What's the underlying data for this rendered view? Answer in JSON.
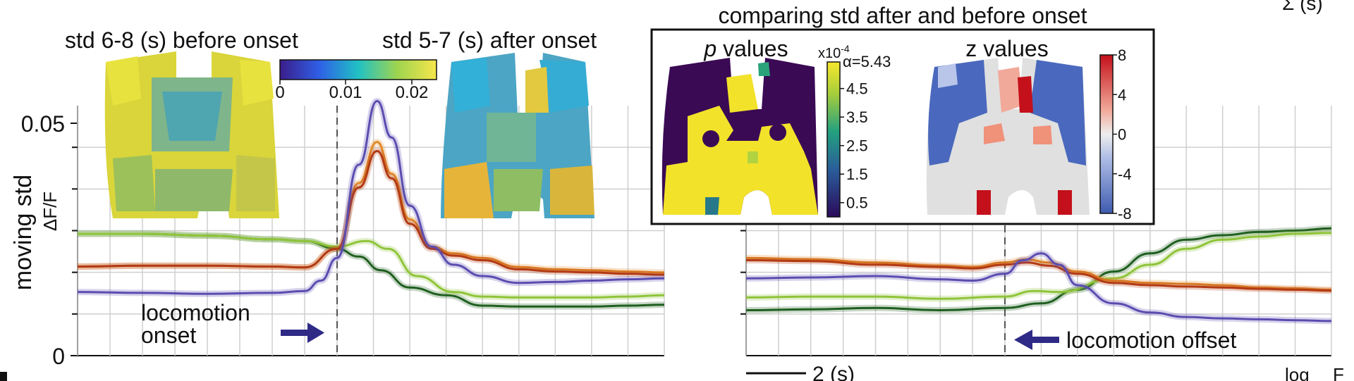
{
  "chart_data": {
    "type": "line",
    "x_unit": "s",
    "y_ticks": [
      "0",
      "0.05"
    ],
    "ylim": [
      0,
      0.055
    ],
    "ylabel": "moving std",
    "ylabel2": "ΔF/F",
    "scalebar_label": "2 (s)",
    "top_right_fragment": "Σ (s)",
    "bottom_right_fragment": "log",
    "bottom_right_fragment2": "F",
    "panels": [
      {
        "id": "onset",
        "xlim": [
          -8,
          9
        ],
        "event_x": 0,
        "annotation": [
          "locomotion",
          "onset"
        ],
        "series": [
          {
            "color": "#1f5f1f",
            "x": [
              -8,
              -6,
              -4,
              -2,
              -1,
              0,
              0.6,
              1.2,
              2.0,
              3.0,
              4,
              5,
              6,
              7,
              8,
              9
            ],
            "y": [
              0.0268,
              0.0268,
              0.0264,
              0.0256,
              0.0252,
              0.0235,
              0.0218,
              0.0188,
              0.015,
              0.0133,
              0.011,
              0.0108,
              0.0108,
              0.0108,
              0.011,
              0.0112
            ]
          },
          {
            "color": "#8fc43a",
            "x": [
              -8,
              -6,
              -4,
              -2,
              -1,
              0,
              0.8,
              1.4,
              2.2,
              3.2,
              4,
              5,
              6,
              7,
              8,
              9
            ],
            "y": [
              0.0268,
              0.0268,
              0.0264,
              0.0256,
              0.0252,
              0.024,
              0.0252,
              0.0235,
              0.0175,
              0.014,
              0.013,
              0.0128,
              0.0128,
              0.0128,
              0.013,
              0.0133
            ]
          },
          {
            "color": "#e28a2a",
            "x": [
              -8,
              -6,
              -4,
              -2,
              -1,
              0,
              0.6,
              1.1,
              1.5,
              2.0,
              2.6,
              3.2,
              4,
              5,
              6,
              7,
              8,
              9
            ],
            "y": [
              0.0196,
              0.0198,
              0.0198,
              0.0196,
              0.0194,
              0.0235,
              0.038,
              0.047,
              0.04,
              0.03,
              0.024,
              0.0225,
              0.0215,
              0.0195,
              0.019,
              0.0188,
              0.0185,
              0.0183
            ]
          },
          {
            "color": "#b23a14",
            "x": [
              -8,
              -6,
              -4,
              -2,
              -1,
              0,
              0.6,
              1.1,
              1.5,
              2.0,
              2.6,
              3.2,
              4,
              5,
              6,
              7,
              8,
              9
            ],
            "y": [
              0.0196,
              0.0198,
              0.0198,
              0.0196,
              0.0194,
              0.0235,
              0.037,
              0.045,
              0.039,
              0.029,
              0.0235,
              0.022,
              0.021,
              0.019,
              0.0185,
              0.0183,
              0.018,
              0.0178
            ]
          },
          {
            "color": "#5a4db0",
            "x": [
              -8,
              -6,
              -4,
              -2,
              -1,
              -0.5,
              0,
              0.6,
              1.1,
              1.5,
              2.0,
              2.6,
              3.2,
              4,
              5,
              6,
              7,
              8,
              9
            ],
            "y": [
              0.014,
              0.0138,
              0.0136,
              0.0138,
              0.0142,
              0.0165,
              0.0215,
              0.042,
              0.056,
              0.048,
              0.033,
              0.024,
              0.02,
              0.0175,
              0.016,
              0.0162,
              0.0165,
              0.0168,
              0.017
            ]
          }
        ]
      },
      {
        "id": "offset",
        "xlim": [
          -8,
          9
        ],
        "event_x": 0,
        "annotation": [
          "locomotion offset"
        ],
        "series": [
          {
            "color": "#1f5f1f",
            "x": [
              -8,
              -6,
              -4,
              -2,
              0,
              1,
              2,
              3,
              4,
              5,
              6,
              7,
              8,
              9
            ],
            "y": [
              0.01,
              0.0102,
              0.0105,
              0.01,
              0.0105,
              0.0115,
              0.0145,
              0.0185,
              0.0225,
              0.0255,
              0.0265,
              0.0272,
              0.0275,
              0.028
            ]
          },
          {
            "color": "#8fc43a",
            "x": [
              -8,
              -6,
              -4,
              -2,
              0,
              0.8,
              1.5,
              3,
              4,
              5,
              6,
              7,
              8,
              9
            ],
            "y": [
              0.0128,
              0.013,
              0.013,
              0.0125,
              0.013,
              0.0142,
              0.014,
              0.017,
              0.02,
              0.0235,
              0.0255,
              0.0262,
              0.0268,
              0.027
            ]
          },
          {
            "color": "#e28a2a",
            "x": [
              -8,
              -6,
              -4,
              -2,
              -1,
              0,
              0.6,
              1.2,
              2,
              3,
              4,
              5,
              6,
              7,
              8,
              9
            ],
            "y": [
              0.0215,
              0.0212,
              0.0205,
              0.0198,
              0.0195,
              0.0205,
              0.0212,
              0.0205,
              0.0185,
              0.0165,
              0.016,
              0.0158,
              0.0155,
              0.015,
              0.0148,
              0.0145
            ]
          },
          {
            "color": "#b23a14",
            "x": [
              -8,
              -6,
              -4,
              -2,
              -1,
              0,
              0.6,
              1.2,
              2,
              3,
              4,
              5,
              6,
              7,
              8,
              9
            ],
            "y": [
              0.021,
              0.0208,
              0.02,
              0.0195,
              0.0192,
              0.02,
              0.0205,
              0.0198,
              0.018,
              0.016,
              0.0155,
              0.0152,
              0.015,
              0.0147,
              0.0145,
              0.0143
            ]
          },
          {
            "color": "#5a4db0",
            "x": [
              -8,
              -6,
              -4,
              -2,
              -1,
              0,
              0.5,
              1.0,
              1.5,
              2,
              3,
              4,
              5,
              6,
              7,
              8,
              9
            ],
            "y": [
              0.017,
              0.0172,
              0.0175,
              0.0168,
              0.0165,
              0.018,
              0.021,
              0.0225,
              0.02,
              0.0155,
              0.0115,
              0.0095,
              0.0085,
              0.0082,
              0.008,
              0.0078,
              0.0076
            ]
          }
        ]
      }
    ],
    "maps": {
      "before_title": "std 6-8 (s) before onset",
      "after_title": "std 5-7 (s) after onset",
      "std_colorbar_ticks": [
        "0",
        "0.01",
        "0.02"
      ],
      "comparison_title": "comparing std after and before onset",
      "p_title_italic": "p",
      "p_title_rest": " values",
      "p_scale_label": "x10",
      "p_scale_exp": "-4",
      "alpha_label": "α=5.43",
      "p_ticks": [
        "4.5",
        "3.5",
        "2.5",
        "1.5",
        "0.5"
      ],
      "z_title": "z values",
      "z_ticks": [
        "8",
        "4",
        "0",
        "-4",
        "-8"
      ]
    }
  }
}
